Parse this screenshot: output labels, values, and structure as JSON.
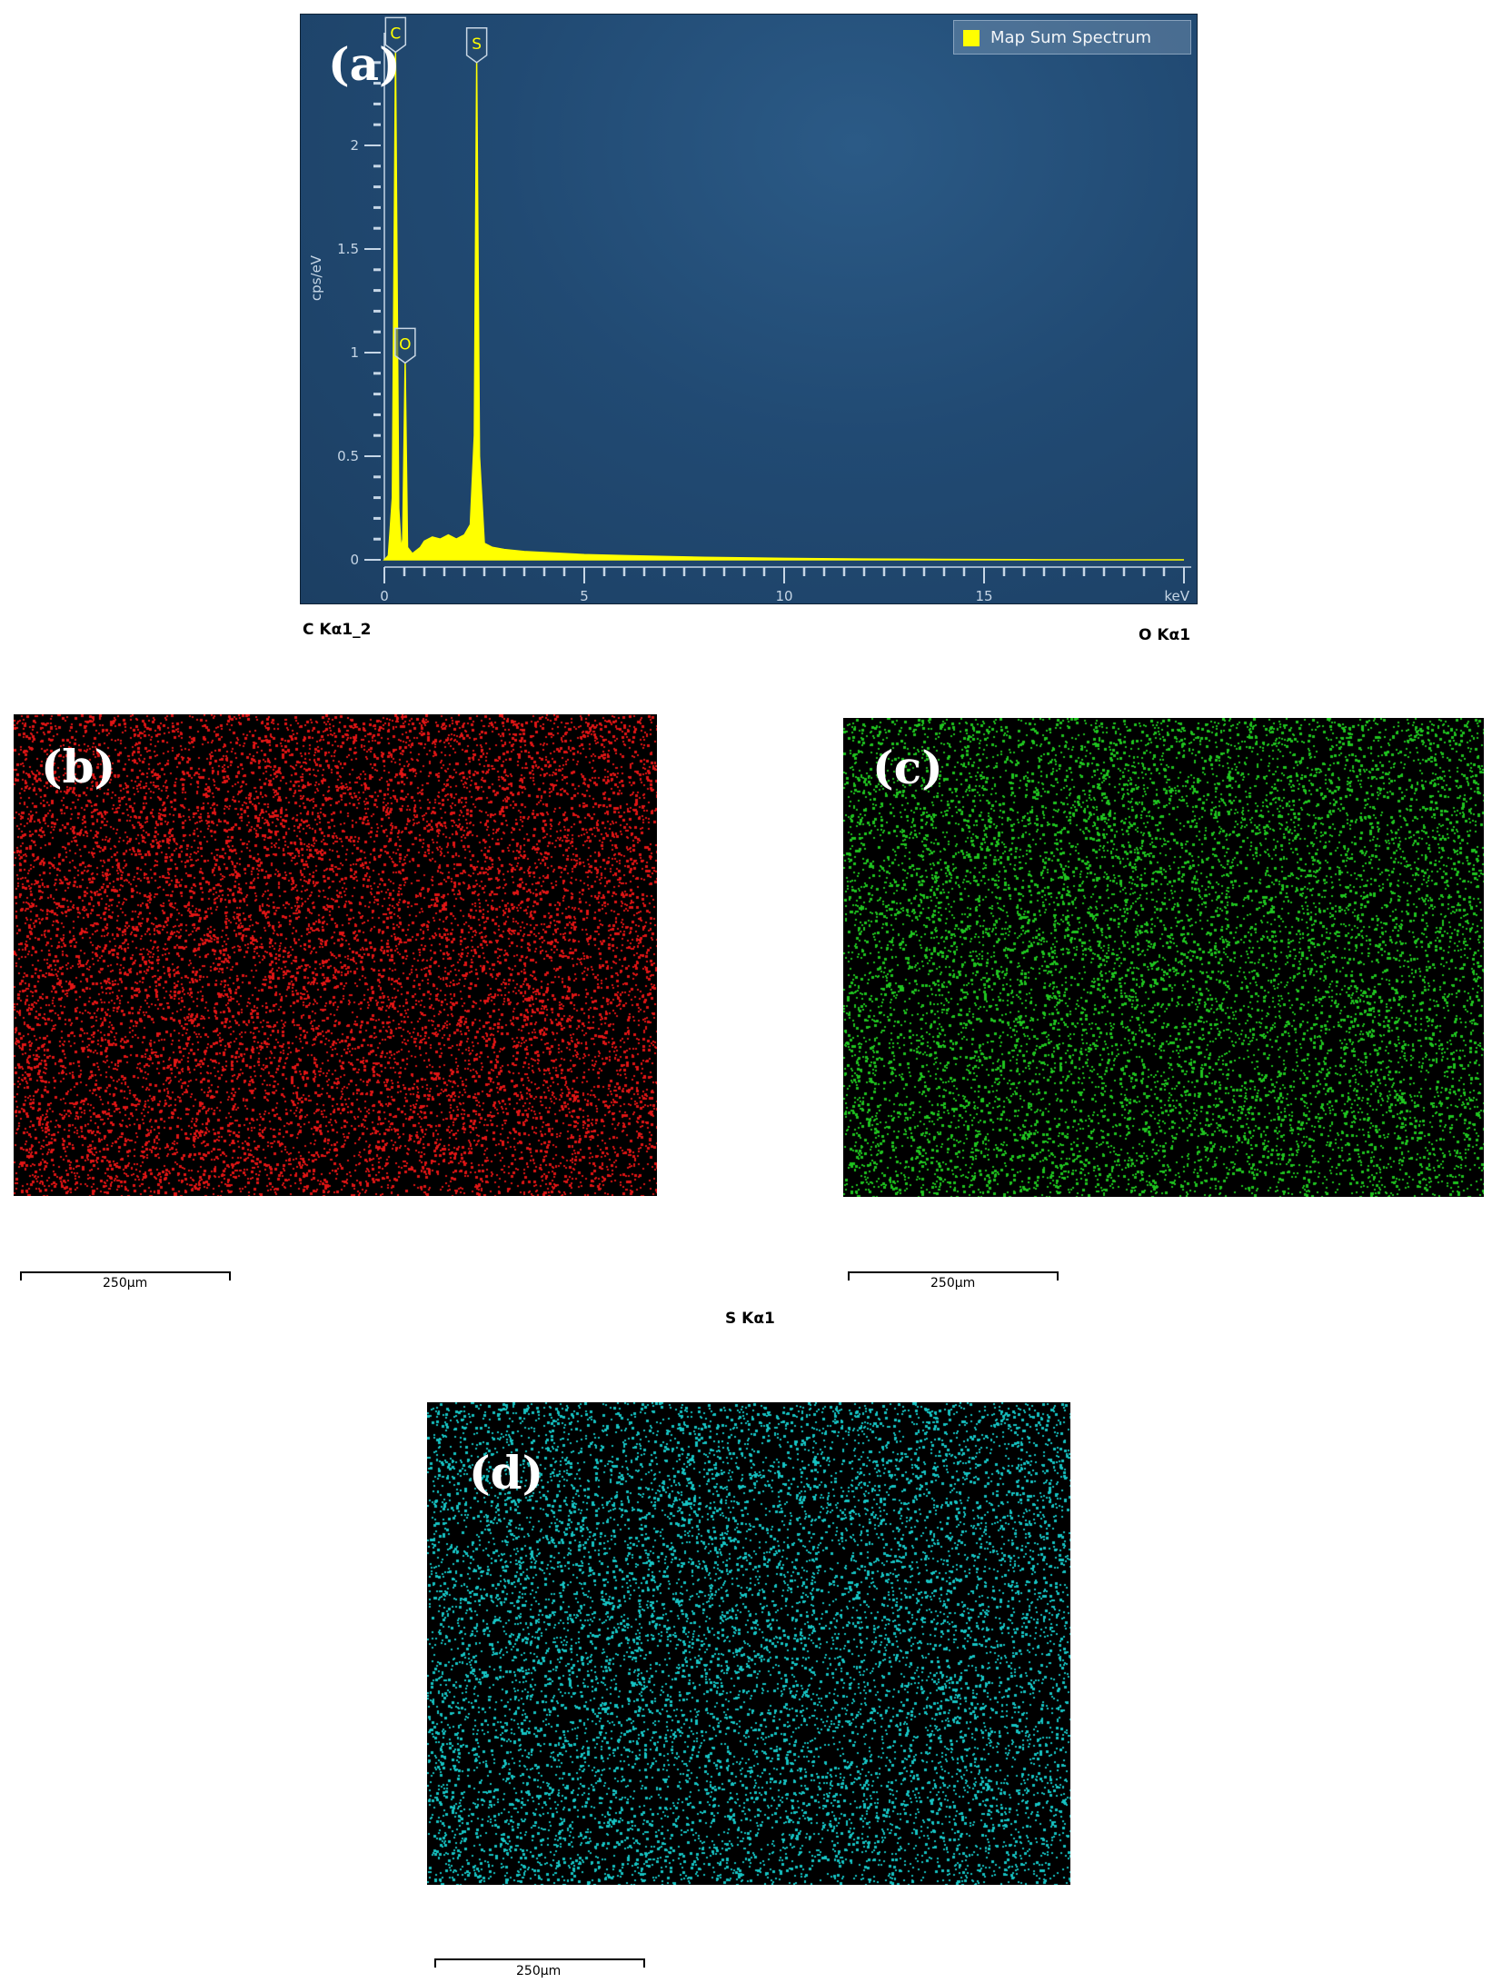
{
  "chart_data": [
    {
      "type": "line",
      "panel_label": "(a)",
      "legend": "Map Sum Spectrum",
      "ylabel": "cps/eV",
      "xunit": "keV",
      "xlim": [
        0,
        20
      ],
      "ylim": [
        0,
        2.5
      ],
      "xticks": [
        "0",
        "5",
        "10",
        "15"
      ],
      "yticks": [
        "0",
        "0.5",
        "1",
        "1.5",
        "2"
      ],
      "series_color": "#ffff00",
      "peaks": [
        {
          "element": "C",
          "energy": 0.28,
          "value": 2.45
        },
        {
          "element": "O",
          "energy": 0.52,
          "value": 0.95
        },
        {
          "element": "S",
          "energy": 2.31,
          "value": 2.4
        }
      ],
      "spectrum": [
        [
          0.0,
          0.0
        ],
        [
          0.1,
          0.02
        ],
        [
          0.2,
          0.3
        ],
        [
          0.28,
          2.45
        ],
        [
          0.36,
          0.25
        ],
        [
          0.42,
          0.05
        ],
        [
          0.46,
          0.1
        ],
        [
          0.52,
          0.95
        ],
        [
          0.58,
          0.06
        ],
        [
          0.7,
          0.03
        ],
        [
          0.9,
          0.06
        ],
        [
          1.0,
          0.09
        ],
        [
          1.2,
          0.11
        ],
        [
          1.4,
          0.1
        ],
        [
          1.6,
          0.12
        ],
        [
          1.8,
          0.1
        ],
        [
          2.0,
          0.12
        ],
        [
          2.15,
          0.17
        ],
        [
          2.25,
          0.6
        ],
        [
          2.31,
          2.4
        ],
        [
          2.38,
          0.5
        ],
        [
          2.5,
          0.08
        ],
        [
          2.7,
          0.06
        ],
        [
          3.0,
          0.05
        ],
        [
          3.5,
          0.04
        ],
        [
          4.0,
          0.035
        ],
        [
          5.0,
          0.025
        ],
        [
          6.0,
          0.02
        ],
        [
          8.0,
          0.012
        ],
        [
          10.0,
          0.007
        ],
        [
          12.0,
          0.004
        ],
        [
          14.0,
          0.002
        ],
        [
          16.0,
          0.001
        ],
        [
          18.0,
          0.0
        ],
        [
          20.0,
          0.0
        ]
      ]
    }
  ],
  "maps": [
    {
      "id": "b",
      "label": "(b)",
      "element_line": "C Kα1_2",
      "color": "#e01515",
      "density": 0.55,
      "scale_label": "250μm"
    },
    {
      "id": "c",
      "label": "(c)",
      "element_line": "O Kα1",
      "color": "#1fc41f",
      "density": 0.32,
      "scale_label": "250μm"
    },
    {
      "id": "d",
      "label": "(d)",
      "element_line": "S Kα1",
      "color": "#16c3c3",
      "density": 0.62,
      "scale_label": "250μm"
    }
  ]
}
